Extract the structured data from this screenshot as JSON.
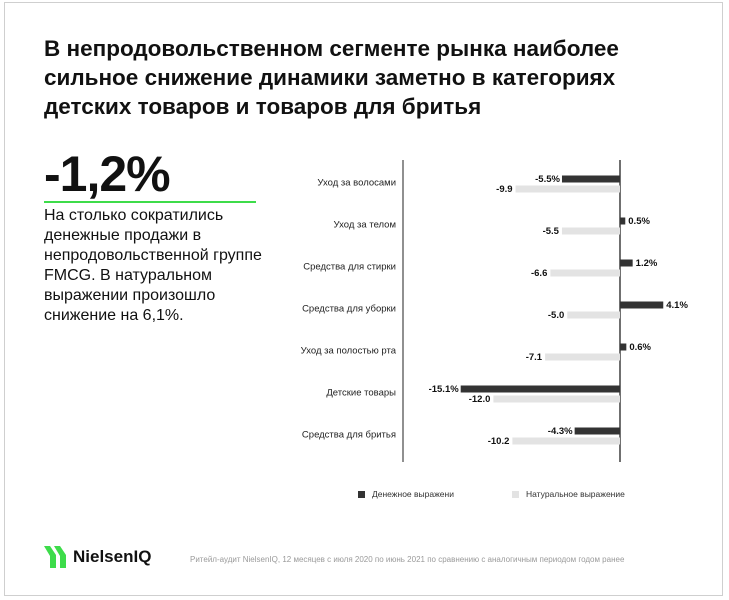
{
  "title": "В непродовольственном сегменте рынка наиболее сильное снижение динамики заметно в категориях детских товаров и товаров для бритья",
  "stat": {
    "value": "-1,2%",
    "description": "На столько сократились денежные продажи в непродовольственной группе FMCG. В натуральном выражении произошло снижение на 6,1%."
  },
  "colors": {
    "accent": "#3ddc4a",
    "money": "#333333",
    "natural": "#e3e3e3"
  },
  "chart_data": {
    "type": "bar",
    "orientation": "horizontal",
    "categories": [
      "Уход за волосами",
      "Уход за телом",
      "Средства для стирки",
      "Средства для уборки",
      "Уход за полостью рта",
      "Детские товары",
      "Средства для бритья"
    ],
    "series": [
      {
        "name": "Денежное выражени",
        "values": [
          -5.5,
          0.5,
          1.2,
          4.1,
          0.6,
          -15.1,
          -4.3
        ],
        "labels": [
          "-5.5%",
          "0.5%",
          "1.2%",
          "4.1%",
          "0.6%",
          "-15.1%",
          "-4.3%"
        ]
      },
      {
        "name": "Натуральное выражение",
        "values": [
          -9.9,
          -5.5,
          -6.6,
          -5.0,
          -7.1,
          -12.0,
          -10.2
        ],
        "labels": [
          "-9.9",
          "-5.5",
          "-6.6",
          "-5.0",
          "-7.1",
          "-12.0",
          "-10.2"
        ]
      }
    ]
  },
  "legend": {
    "money": "Денежное выражени",
    "natural": "Натуральное выражение"
  },
  "brand": {
    "name": "NielsenIQ",
    "icon": "nielseniq-logo-icon"
  },
  "footnote": "Ритейл-аудит NielsenIQ, 12 месяцев с июля 2020 по июнь 2021 по сравнению с аналогичным периодом годом ранее"
}
